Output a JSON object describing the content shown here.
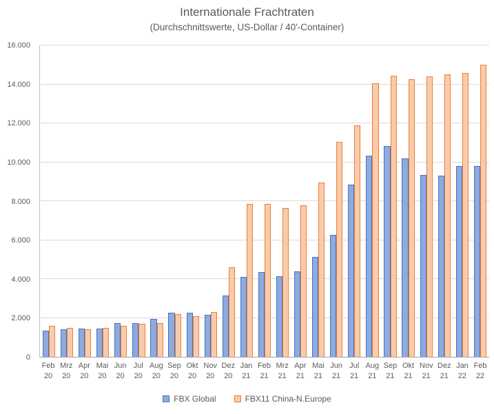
{
  "chart_data": {
    "type": "bar",
    "title": "Internationale Frachtraten",
    "subtitle": "(Durchschnittswerte, US-Dollar / 40'-Container)",
    "categories": [
      "Feb 20",
      "Mrz 20",
      "Apr 20",
      "Mai 20",
      "Jun 20",
      "Jul 20",
      "Aug 20",
      "Sep 20",
      "Okt 20",
      "Nov 20",
      "Dez 20",
      "Jan 21",
      "Feb 21",
      "Mrz 21",
      "Apr 21",
      "Mai 21",
      "Jun 21",
      "Jul 21",
      "Aug 21",
      "Sep 21",
      "Okt 21",
      "Nov 21",
      "Dez 21",
      "Jan 22",
      "Feb 22"
    ],
    "series": [
      {
        "name": "FBX Global",
        "fill": "#8faadc",
        "border": "#4472c4",
        "values": [
          1350,
          1400,
          1450,
          1450,
          1750,
          1750,
          1950,
          2250,
          2250,
          2150,
          3150,
          4100,
          4350,
          4150,
          4400,
          5150,
          6250,
          8850,
          10350,
          10850,
          10200,
          9350,
          9300,
          9800,
          9800
        ]
      },
      {
        "name": "FBX11 China-N.Europe",
        "fill": "#f8cbad",
        "border": "#ed7d31",
        "values": [
          1600,
          1500,
          1400,
          1500,
          1600,
          1700,
          1750,
          2200,
          2100,
          2300,
          4600,
          7850,
          7850,
          7650,
          7800,
          8950,
          11050,
          11900,
          14050,
          14450,
          14250,
          14400,
          14500,
          14600,
          15000
        ]
      }
    ],
    "ylim": [
      0,
      16000
    ],
    "ytick_values": [
      0,
      2000,
      4000,
      6000,
      8000,
      10000,
      12000,
      14000,
      16000
    ],
    "ytick_labels": [
      "0",
      "2.000",
      "4.000",
      "6.000",
      "8.000",
      "10.000",
      "12.000",
      "14.000",
      "16.000"
    ],
    "grid": true,
    "legend_position": "bottom"
  }
}
